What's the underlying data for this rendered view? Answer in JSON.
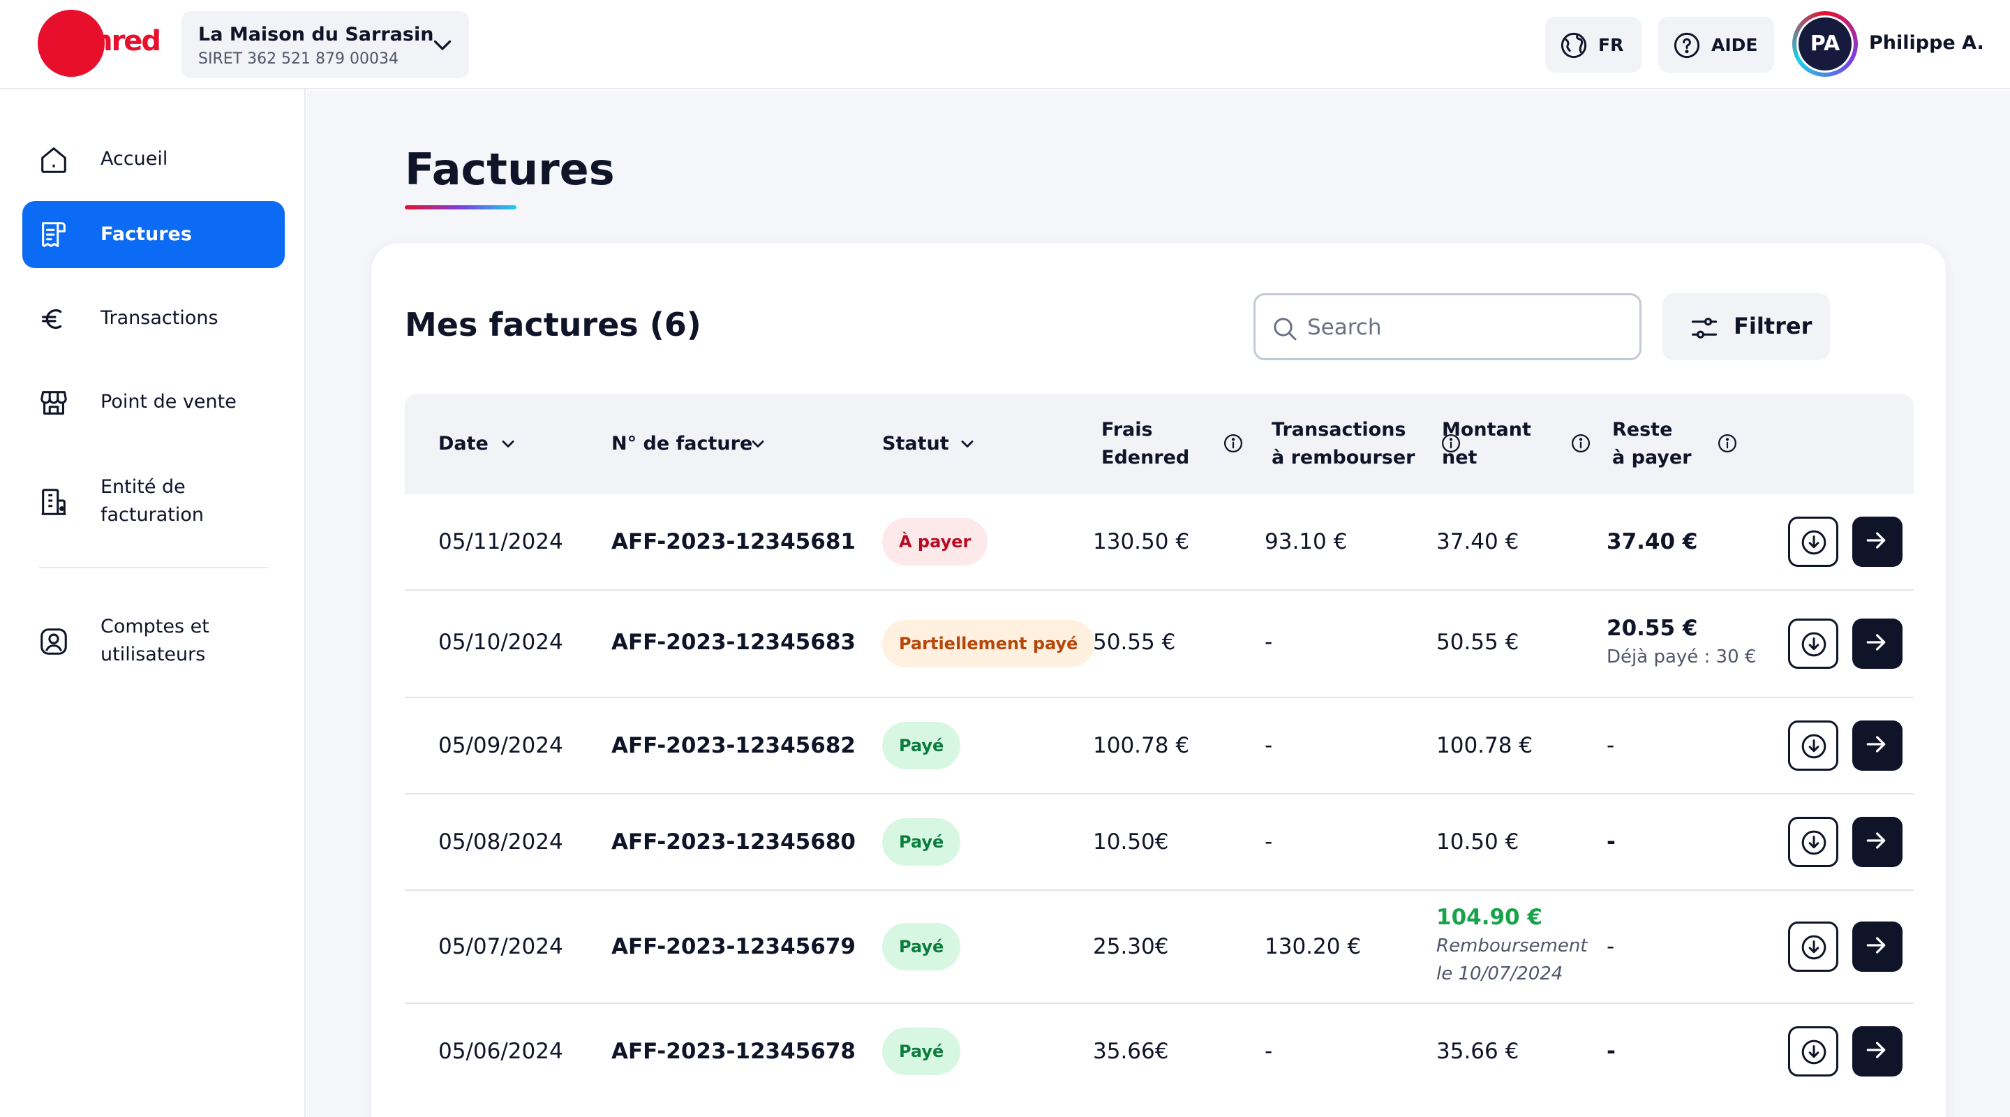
{
  "header": {
    "logo_text": "Edenred",
    "company_name": "La Maison du Sarrasin",
    "company_siret": "SIRET 362 521 879 00034",
    "lang_label": "FR",
    "help_label": "AIDE",
    "avatar_initials": "PA",
    "user_name": "Philippe A."
  },
  "sidebar": {
    "items": [
      {
        "label": "Accueil",
        "icon": "home-icon"
      },
      {
        "label": "Factures",
        "icon": "invoice-icon",
        "active": true
      },
      {
        "label": "Transactions",
        "icon": "euro-icon"
      },
      {
        "label": "Point de vente",
        "icon": "store-icon"
      },
      {
        "label_line1": "Entité de",
        "label_line2": "facturation",
        "icon": "building-icon"
      },
      {
        "label_line1": "Comptes et",
        "label_line2": "utilisateurs",
        "icon": "user-account-icon"
      }
    ]
  },
  "main": {
    "title": "Factures",
    "card_title": "Mes factures (6)",
    "search_placeholder": "Search",
    "filter_label": "Filtrer"
  },
  "table": {
    "headers": {
      "date": "Date",
      "number": "N° de facture",
      "status": "Statut",
      "fees_l1": "Frais",
      "fees_l2": "Edenred",
      "tx_l1": "Transactions",
      "tx_l2": "à rembourser",
      "net_l1": "Montant",
      "net_l2": "net",
      "rest_l1": "Reste",
      "rest_l2": "à payer"
    },
    "rows": [
      {
        "date": "05/11/2024",
        "number": "AFF-2023-12345681",
        "status": "À payer",
        "fees": "130.50 €",
        "tx": "93.10 €",
        "net": "37.40 €",
        "rest": "37.40 €"
      },
      {
        "date": "05/10/2024",
        "number": "AFF-2023-12345683",
        "status": "Partiellement payé",
        "fees": "50.55 €",
        "tx": "-",
        "net": "50.55 €",
        "rest": "20.55 €",
        "rest_note": "Déjà payé : 30 €"
      },
      {
        "date": "05/09/2024",
        "number": "AFF-2023-12345682",
        "status": "Payé",
        "fees": "100.78 €",
        "tx": "-",
        "net": "100.78 €",
        "rest": "-"
      },
      {
        "date": "05/08/2024",
        "number": "AFF-2023-12345680",
        "status": "Payé",
        "fees": "10.50€",
        "tx": "-",
        "net": "10.50 €",
        "rest": "-"
      },
      {
        "date": "05/07/2024",
        "number": "AFF-2023-12345679",
        "status": "Payé",
        "fees": "25.30€",
        "tx": "130.20 €",
        "net": "104.90 €",
        "net_note_l1": "Remboursement",
        "net_note_l2": "le 10/07/2024",
        "rest": "-"
      },
      {
        "date": "05/06/2024",
        "number": "AFF-2023-12345678",
        "status": "Payé",
        "fees": "35.66€",
        "tx": "-",
        "net": "35.66 €",
        "rest": "-"
      }
    ]
  },
  "colors": {
    "brand_red": "#e80f2d",
    "active_blue": "#0c6bf4",
    "dark": "#0f1428",
    "paid_green": "#0a7d3c"
  }
}
